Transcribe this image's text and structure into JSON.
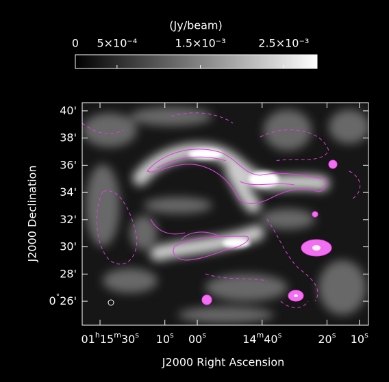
{
  "chart_data": {
    "type": "image",
    "colorbar": {
      "title": "(Jy/beam)",
      "lim": [
        0,
        0.0029
      ],
      "ticks": [
        {
          "value": 0,
          "label": "0"
        },
        {
          "value": 0.0005,
          "label": "5×10⁻⁴"
        },
        {
          "value": 0.0015,
          "label": "1.5×10⁻³"
        },
        {
          "value": 0.0025,
          "label": "2.5×10⁻³"
        }
      ]
    },
    "x_label": "J2000 Right Ascension",
    "y_label": "J2000 Declination",
    "xlim": [
      4535.5,
      4447.2
    ],
    "xticks": [
      {
        "value": 4530,
        "label": "01h15m30s"
      },
      {
        "value": 4510,
        "label": "10s"
      },
      {
        "value": 4500,
        "label": "00s"
      },
      {
        "value": 4480,
        "label": "14m40s"
      },
      {
        "value": 4460,
        "label": "20s"
      },
      {
        "value": 4450,
        "label": "10s"
      }
    ],
    "ylim": [
      24.24,
      40.6
    ],
    "yticks": [
      {
        "value": 40,
        "label": "40'"
      },
      {
        "value": 38,
        "label": "38'"
      },
      {
        "value": 36,
        "label": "36'"
      },
      {
        "value": 34,
        "label": "34'"
      },
      {
        "value": 32,
        "label": "32'"
      },
      {
        "value": 30,
        "label": "30'"
      },
      {
        "value": 28,
        "label": "28'"
      },
      {
        "value": 26,
        "label": "0°26'"
      }
    ]
  }
}
